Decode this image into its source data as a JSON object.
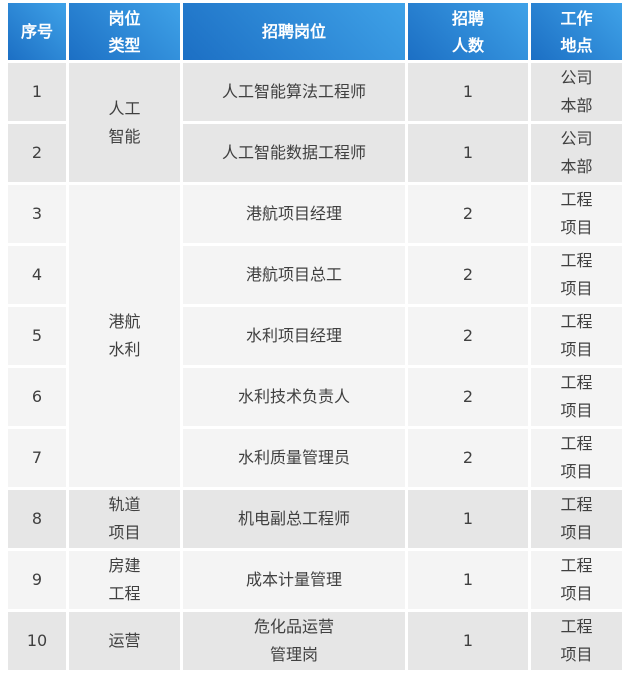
{
  "table": {
    "headers": {
      "no": "序号",
      "type": "岗位\n类型",
      "position": "招聘岗位",
      "count": "招聘\n人数",
      "location": "工作\n地点"
    },
    "rows": [
      {
        "no": "1",
        "type": "人工\n智能",
        "position": "人工智能算法工程师",
        "count": "1",
        "location": "公司\n本部"
      },
      {
        "no": "2",
        "position": "人工智能数据工程师",
        "count": "1",
        "location": "公司\n本部"
      },
      {
        "no": "3",
        "type": "港航\n水利",
        "position": "港航项目经理",
        "count": "2",
        "location": "工程\n项目"
      },
      {
        "no": "4",
        "position": "港航项目总工",
        "count": "2",
        "location": "工程\n项目"
      },
      {
        "no": "5",
        "position": "水利项目经理",
        "count": "2",
        "location": "工程\n项目"
      },
      {
        "no": "6",
        "position": "水利技术负责人",
        "count": "2",
        "location": "工程\n项目"
      },
      {
        "no": "7",
        "position": "水利质量管理员",
        "count": "2",
        "location": "工程\n项目"
      },
      {
        "no": "8",
        "type": "轨道\n项目",
        "position": "机电副总工程师",
        "count": "1",
        "location": "工程\n项目"
      },
      {
        "no": "9",
        "type": "房建\n工程",
        "position": "成本计量管理",
        "count": "1",
        "location": "工程\n项目"
      },
      {
        "no": "10",
        "type": "运营",
        "position": "危化品运营\n管理岗",
        "count": "1",
        "location": "工程\n项目"
      }
    ]
  },
  "colors": {
    "header_gradient_dark": "#1c6fc4",
    "header_gradient_light": "#3fa2e8",
    "header_text": "#ffffff",
    "row_shade_dark": "#e6e6e6",
    "row_shade_light": "#f4f4f4",
    "cell_text": "#404040",
    "background": "#ffffff"
  }
}
